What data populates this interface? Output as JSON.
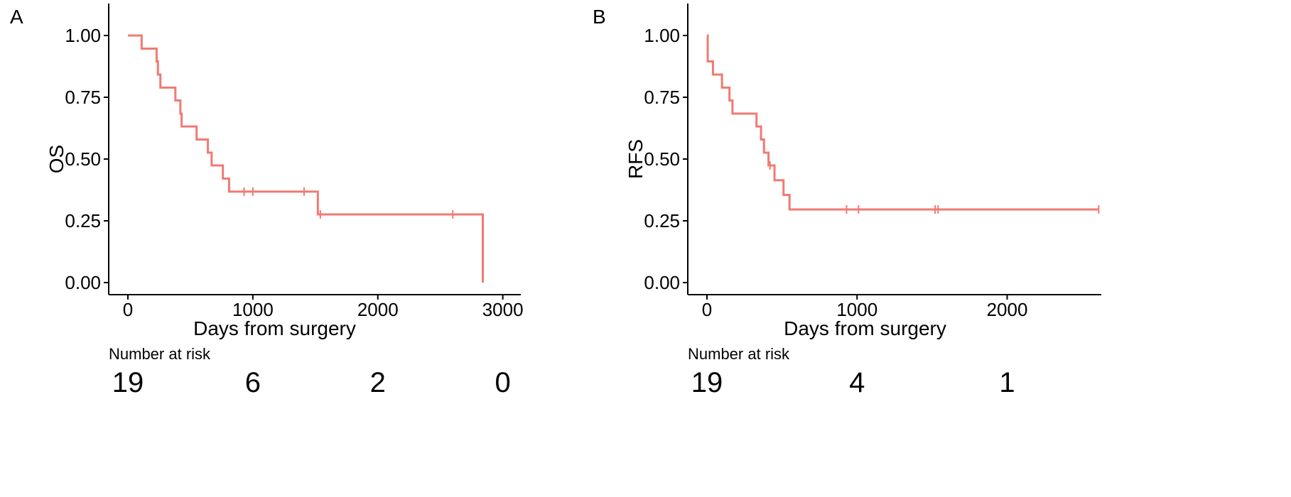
{
  "colors": {
    "curve": "#f07a72",
    "axis": "#000000",
    "background": "#ffffff"
  },
  "chart_data": [
    {
      "type": "line",
      "subtype": "kaplan-meier",
      "panel_label": "A",
      "xlabel": "Days from surgery",
      "ylabel": "OS",
      "xlim": [
        0,
        3000
      ],
      "ylim": [
        0,
        1
      ],
      "x_ticks": [
        0,
        1000,
        2000,
        3000
      ],
      "x_tick_labels": [
        "0",
        "1000",
        "2000",
        "3000"
      ],
      "y_ticks": [
        0,
        0.25,
        0.5,
        0.75,
        1
      ],
      "y_tick_labels": [
        "0.00",
        "0.25",
        "0.50",
        "0.75",
        "1.00"
      ],
      "grid": false,
      "series": [
        {
          "steps": [
            [
              0,
              1.0
            ],
            [
              110,
              0.947
            ],
            [
              230,
              0.895
            ],
            [
              240,
              0.842
            ],
            [
              260,
              0.789
            ],
            [
              380,
              0.737
            ],
            [
              420,
              0.684
            ],
            [
              430,
              0.632
            ],
            [
              550,
              0.579
            ],
            [
              640,
              0.526
            ],
            [
              670,
              0.474
            ],
            [
              760,
              0.421
            ],
            [
              810,
              0.368
            ],
            [
              1520,
              0.276
            ],
            [
              2840,
              0.0
            ]
          ],
          "censored": [
            [
              930,
              0.368
            ],
            [
              1000,
              0.368
            ],
            [
              1410,
              0.368
            ],
            [
              1540,
              0.276
            ],
            [
              2600,
              0.276
            ]
          ]
        }
      ],
      "risk_table": {
        "title": "Number at risk",
        "times": [
          0,
          1000,
          2000,
          3000
        ],
        "counts": [
          "19",
          "6",
          "2",
          "0"
        ]
      }
    },
    {
      "type": "line",
      "subtype": "kaplan-meier",
      "panel_label": "B",
      "xlabel": "Days from surgery",
      "ylabel": "RFS",
      "xlim": [
        0,
        2620
      ],
      "ylim": [
        0,
        1
      ],
      "x_ticks": [
        0,
        1000,
        2000
      ],
      "x_tick_labels": [
        "0",
        "1000",
        "2000"
      ],
      "y_ticks": [
        0,
        0.25,
        0.5,
        0.75,
        1
      ],
      "y_tick_labels": [
        "0.00",
        "0.25",
        "0.50",
        "0.75",
        "1.00"
      ],
      "grid": false,
      "series": [
        {
          "steps": [
            [
              0,
              1.0
            ],
            [
              5,
              0.895
            ],
            [
              40,
              0.842
            ],
            [
              100,
              0.789
            ],
            [
              150,
              0.737
            ],
            [
              170,
              0.684
            ],
            [
              330,
              0.632
            ],
            [
              360,
              0.579
            ],
            [
              380,
              0.526
            ],
            [
              410,
              0.474
            ],
            [
              450,
              0.414
            ],
            [
              510,
              0.355
            ],
            [
              550,
              0.296
            ]
          ],
          "censored": [
            [
              420,
              0.474
            ],
            [
              930,
              0.296
            ],
            [
              1010,
              0.296
            ],
            [
              1520,
              0.296
            ],
            [
              1540,
              0.296
            ],
            [
              2610,
              0.296
            ]
          ]
        }
      ],
      "risk_table": {
        "title": "Number at risk",
        "times": [
          0,
          1000,
          2000
        ],
        "counts": [
          "19",
          "4",
          "1"
        ]
      }
    }
  ]
}
